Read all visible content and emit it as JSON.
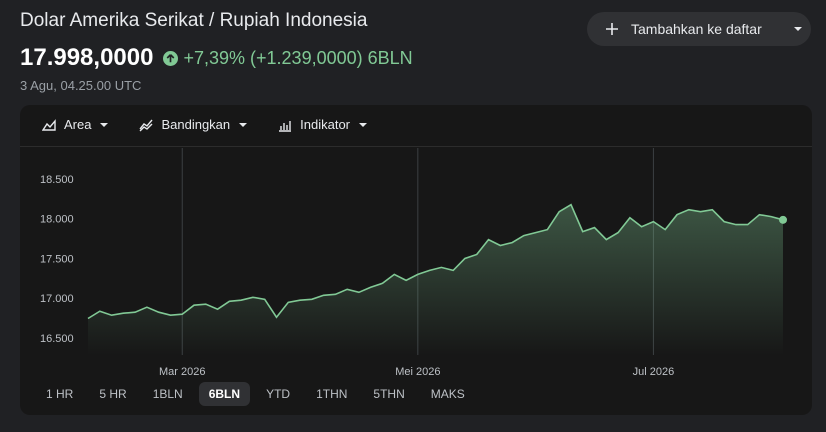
{
  "header": {
    "title": "Dolar Amerika Serikat / Rupiah Indonesia",
    "price": "17.998,0000",
    "change_percent": "+7,39%",
    "change_value": "(+1.239,0000)",
    "period": "6BLN",
    "timestamp": "3 Agu, 04.25.00 UTC",
    "watchlist_button": "Tambahkan ke daftar"
  },
  "toolbar": [
    "Area",
    "Bandingkan",
    "Indikator"
  ],
  "ranges": [
    "1 HR",
    "5 HR",
    "1BLN",
    "6BLN",
    "YTD",
    "1THN",
    "5THN",
    "MAKS"
  ],
  "chart_data": {
    "type": "area",
    "color": "#81c995",
    "categories": [
      null,
      null,
      null,
      null,
      null,
      null,
      null,
      null,
      "Mar 2026",
      null,
      null,
      null,
      null,
      null,
      null,
      null,
      null,
      null,
      null,
      null,
      null,
      null,
      null,
      null,
      null,
      null,
      null,
      null,
      "Mei 2026",
      null,
      null,
      null,
      null,
      null,
      null,
      null,
      null,
      null,
      null,
      null,
      null,
      null,
      null,
      null,
      null,
      null,
      null,
      null,
      "Jul 2026",
      null,
      null,
      null,
      null,
      null,
      null,
      null,
      null,
      null,
      null,
      null
    ],
    "values": [
      16759,
      16850,
      16800,
      16825,
      16838,
      16900,
      16838,
      16800,
      16812,
      16925,
      16938,
      16875,
      16975,
      16988,
      17025,
      17000,
      16775,
      16962,
      16988,
      17000,
      17050,
      17062,
      17125,
      17088,
      17150,
      17200,
      17312,
      17238,
      17312,
      17362,
      17400,
      17362,
      17512,
      17562,
      17750,
      17675,
      17712,
      17800,
      17838,
      17875,
      18100,
      18188,
      17850,
      17900,
      17750,
      17838,
      18025,
      17912,
      17975,
      17875,
      18062,
      18125,
      18100,
      18125,
      17975,
      17938,
      17938,
      18062,
      18038,
      17998
    ],
    "ylim": [
      16300,
      18900
    ],
    "yticks": [
      {
        "value": 16500,
        "label": "16.500"
      },
      {
        "value": 17000,
        "label": "17.000"
      },
      {
        "value": 17500,
        "label": "17.500"
      },
      {
        "value": 18000,
        "label": "18.000"
      },
      {
        "value": 18500,
        "label": "18.500"
      }
    ],
    "grid": true
  }
}
